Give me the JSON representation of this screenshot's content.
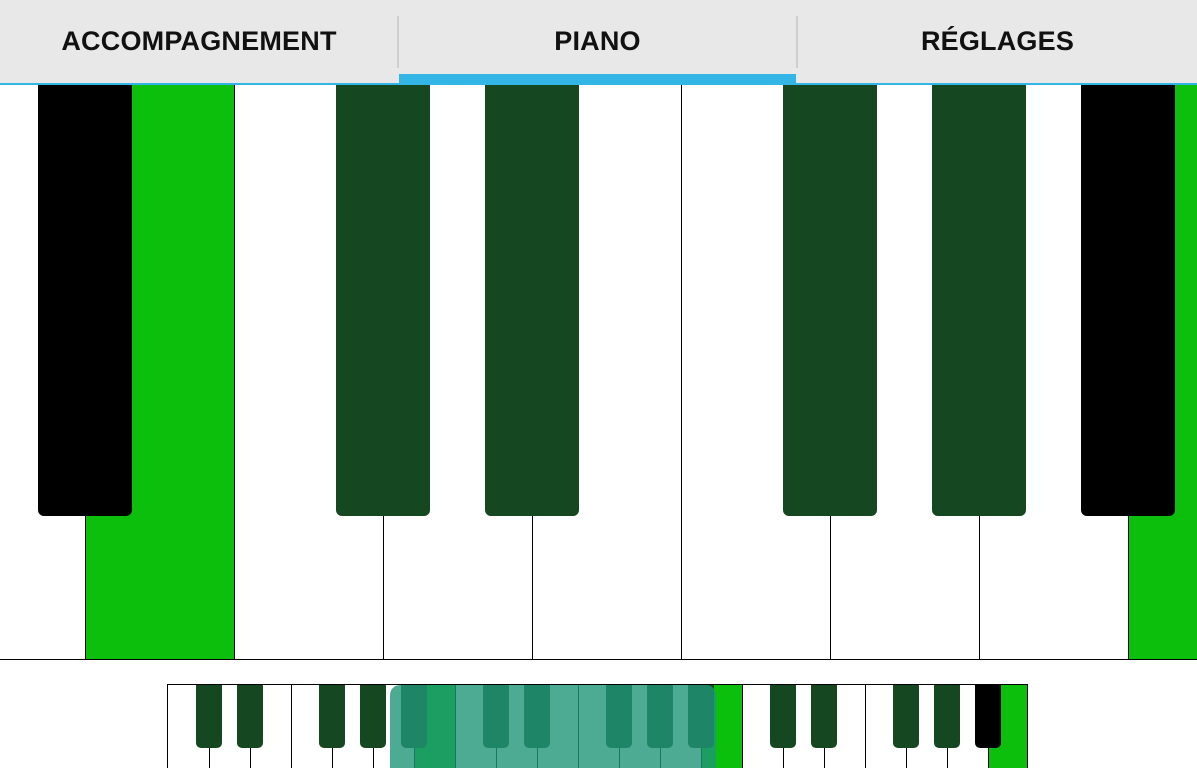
{
  "tabs": [
    {
      "label": "ACCOMPAGNEMENT",
      "selected": false
    },
    {
      "label": "PIANO",
      "selected": true
    },
    {
      "label": "RÉGLAGES",
      "selected": false
    }
  ],
  "colors": {
    "accent": "#33b5e5",
    "highlight_white": "#0cbf0c",
    "highlight_black": "#154720",
    "black_key": "#000000",
    "white_key": "#ffffff",
    "tab_bg": "#e8e8e8"
  },
  "keyboard": {
    "white_keys": [
      "normal",
      "highlight",
      "normal",
      "normal",
      "normal",
      "normal",
      "normal",
      "normal",
      "highlight"
    ],
    "black_keys": [
      "normal",
      "highlight",
      "highlight",
      "highlight",
      "highlight",
      "normal"
    ]
  },
  "mini_keyboard": {
    "white_keys": [
      "normal",
      "normal",
      "normal",
      "normal",
      "normal",
      "normal",
      "highlight",
      "normal",
      "normal",
      "normal",
      "normal",
      "normal",
      "normal",
      "highlight",
      "normal",
      "normal",
      "normal",
      "normal",
      "normal",
      "normal",
      "highlight"
    ],
    "black_keys": [
      "highlight",
      "highlight",
      "highlight",
      "highlight",
      "highlight",
      "highlight",
      "highlight",
      "highlight",
      "highlight",
      "highlight",
      "highlight",
      "highlight",
      "highlight",
      "highlight",
      "normal"
    ]
  }
}
